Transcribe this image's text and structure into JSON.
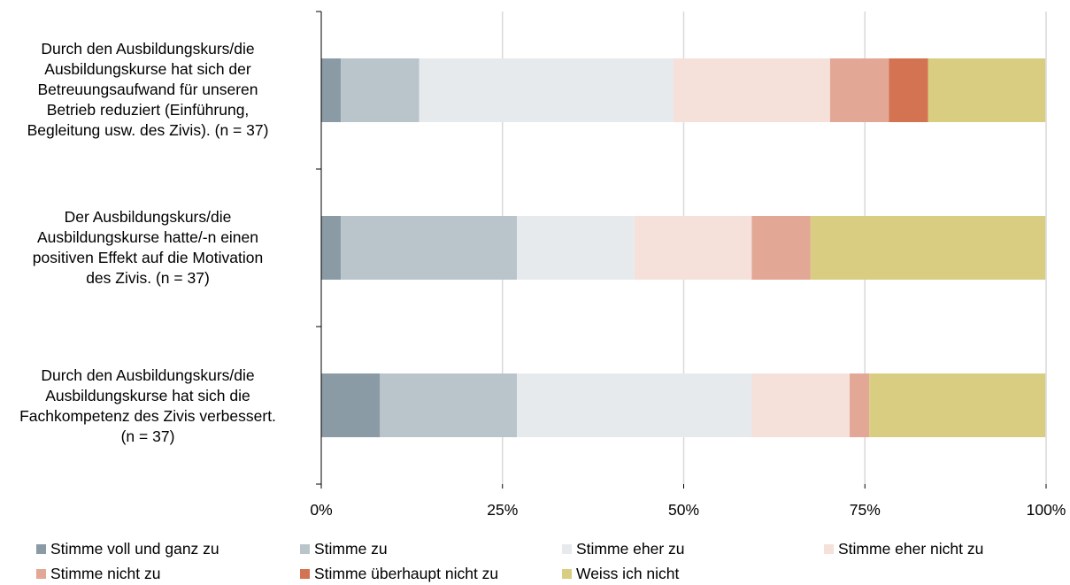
{
  "chart_data": {
    "type": "bar",
    "orientation": "horizontal",
    "stacked": "percent",
    "title": "",
    "xlabel": "",
    "ylabel": "",
    "xlim": [
      0,
      100
    ],
    "x_ticks": [
      "0%",
      "25%",
      "50%",
      "75%",
      "100%"
    ],
    "grid": true,
    "legend_position": "bottom",
    "categories": [
      "Durch den Ausbildungskurs/die Ausbildungskurse hat sich der Betreuungsaufwand für unseren Betrieb reduziert (Einführung, Begleitung usw. des Zivis). (n = 37)",
      "Der Ausbildungskurs/die Ausbildungskurse hatte/-n einen positiven Effekt auf die Motivation des Zivis. (n = 37)",
      "Durch den Ausbildungskurs/die Ausbildungskurse hat sich die Fachkompetenz des Zivis verbessert. (n = 37)"
    ],
    "category_lines": [
      [
        "Durch den Ausbildungskurs/die",
        "Ausbildungskurse hat sich der",
        "Betreuungsaufwand für unseren",
        "Betrieb reduziert (Einführung,",
        "Begleitung usw. des Zivis). (n = 37)"
      ],
      [
        "Der Ausbildungskurs/die",
        "Ausbildungskurse hatte/-n einen",
        "positiven Effekt auf die Motivation",
        "des Zivis. (n = 37)"
      ],
      [
        "Durch den Ausbildungskurs/die",
        "Ausbildungskurse hat sich die",
        "Fachkompetenz des Zivis verbessert.",
        "(n = 37)"
      ]
    ],
    "series": [
      {
        "name": "Stimme voll und ganz zu",
        "color": "#8a9ba5",
        "values": [
          2.7,
          2.7,
          8.1
        ]
      },
      {
        "name": "Stimme zu",
        "color": "#b9c5cb",
        "values": [
          10.8,
          24.3,
          18.9
        ]
      },
      {
        "name": "Stimme eher zu",
        "color": "#e6eaed",
        "values": [
          35.1,
          16.2,
          32.4
        ]
      },
      {
        "name": "Stimme eher nicht zu",
        "color": "#f5e0da",
        "values": [
          21.6,
          16.2,
          13.5
        ]
      },
      {
        "name": "Stimme nicht zu",
        "color": "#e2a795",
        "values": [
          8.1,
          8.1,
          2.7
        ]
      },
      {
        "name": "Stimme überhaupt nicht zu",
        "color": "#d47352",
        "values": [
          5.4,
          0,
          0
        ]
      },
      {
        "name": "Weiss ich nicht",
        "color": "#d8cd80",
        "values": [
          16.2,
          32.4,
          24.3
        ]
      }
    ]
  }
}
